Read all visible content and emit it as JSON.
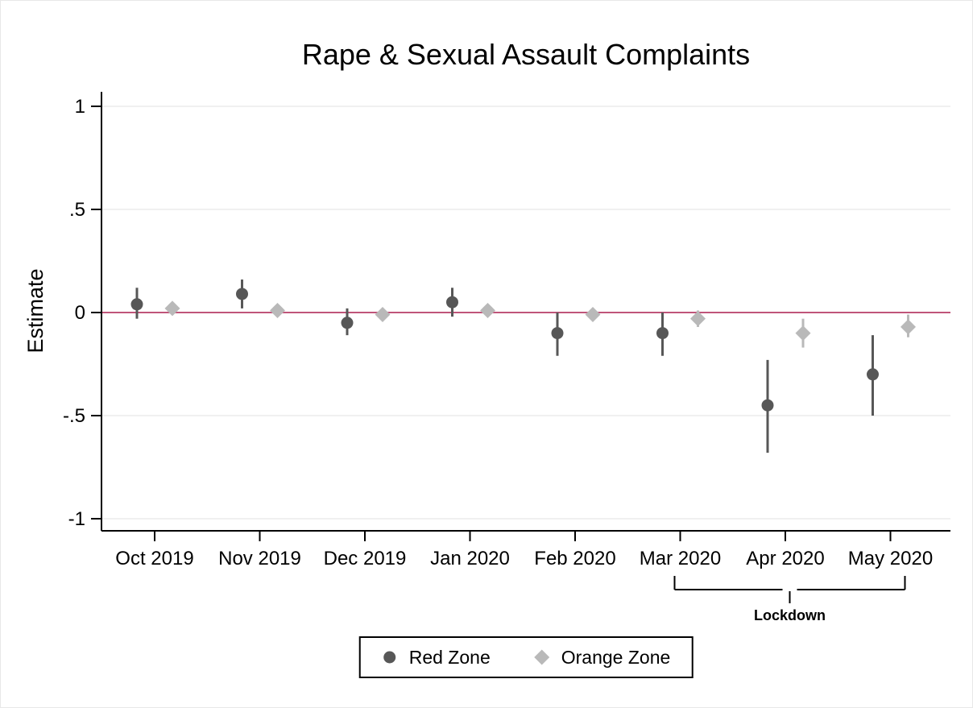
{
  "window": {
    "background": "#ffffff"
  },
  "chart_data": {
    "type": "scatter",
    "subtype": "coefficient-plot-with-confidence-intervals",
    "title": "Rape & Sexual Assault Complaints",
    "xlabel": "",
    "ylabel": "Estimate",
    "ylim": [
      -1.1,
      1.05
    ],
    "yticks": [
      1,
      0.5,
      0,
      -0.5,
      -1
    ],
    "ytick_labels": [
      "1",
      ".5",
      "0",
      "-.5",
      "-1"
    ],
    "grid": true,
    "categories": [
      "Oct 2019",
      "Nov 2019",
      "Dec 2019",
      "Jan 2020",
      "Feb 2020",
      "Mar 2020",
      "Apr 2020",
      "May 2020"
    ],
    "series": [
      {
        "name": "Red Zone",
        "marker": "circle",
        "color": "#575757",
        "estimates": [
          0.04,
          0.09,
          -0.05,
          0.05,
          -0.1,
          -0.1,
          -0.45,
          -0.3
        ],
        "ci_low": [
          -0.03,
          0.02,
          -0.11,
          -0.02,
          -0.21,
          -0.21,
          -0.68,
          -0.5
        ],
        "ci_high": [
          0.12,
          0.16,
          0.02,
          0.12,
          0.0,
          0.0,
          -0.23,
          -0.11
        ]
      },
      {
        "name": "Orange Zone",
        "marker": "diamond",
        "color": "#b9b9b9",
        "estimates": [
          0.02,
          0.01,
          -0.01,
          0.01,
          -0.01,
          -0.03,
          -0.1,
          -0.07
        ],
        "ci_low": [
          -0.01,
          -0.02,
          -0.04,
          -0.02,
          -0.04,
          -0.07,
          -0.17,
          -0.12
        ],
        "ci_high": [
          0.05,
          0.04,
          0.02,
          0.04,
          0.02,
          0.01,
          -0.03,
          -0.01
        ]
      }
    ],
    "reference_line": {
      "y": 0,
      "color": "#c0557a"
    },
    "annotation": {
      "label": "Lockdown",
      "span": [
        "Mar 2020",
        "May 2020"
      ]
    },
    "legend_position": "bottom-center",
    "colors": {
      "axis": "#000000",
      "gridline": "#ebebeb",
      "zero_line": "#c0557a",
      "red_zone": "#575757",
      "orange_zone": "#b9b9b9"
    }
  }
}
